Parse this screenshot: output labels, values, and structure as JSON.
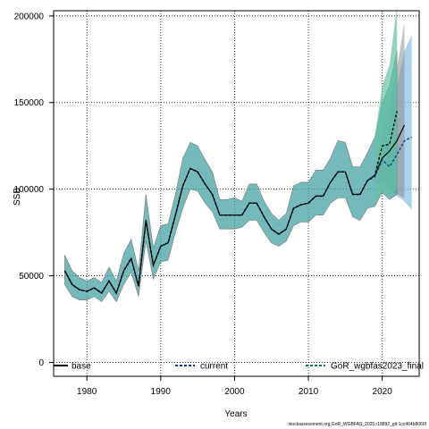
{
  "chart_data": {
    "type": "line",
    "xlabel": "Years",
    "ylabel": "SSB",
    "xlim": [
      1975.5,
      2025
    ],
    "ylim": [
      -8000,
      203000
    ],
    "x_ticks": [
      1980,
      1990,
      2000,
      2010,
      2020
    ],
    "y_ticks": [
      0,
      50000,
      100000,
      150000,
      200000
    ],
    "x_tick_labels": [
      "1980",
      "1990",
      "2000",
      "2010",
      "2020"
    ],
    "y_tick_labels": [
      "0",
      "50000",
      "100000",
      "150000",
      "200000"
    ],
    "grid": true,
    "legend_placement": "bottom",
    "colors": {
      "base": "#000000",
      "current": "#0b3d8c",
      "gor": "#0b6e5e",
      "gor_band": "#45a3a3",
      "forecast_green": "#66c2a5",
      "forecast_blue": "#8fc3e3",
      "forecast_grey": "#8c8c8c"
    },
    "series": [
      {
        "name": "base",
        "x": [
          1977,
          1978,
          1979,
          1980,
          1981,
          1982,
          1983,
          1984,
          1985,
          1986,
          1987,
          1988,
          1989,
          1990,
          1991,
          1992,
          1993,
          1994,
          1995,
          1996,
          1997,
          1998,
          1999,
          2000,
          2001,
          2002,
          2003,
          2004,
          2005,
          2006,
          2007,
          2008,
          2009,
          2010,
          2011,
          2012,
          2013,
          2014,
          2015,
          2016,
          2017,
          2018,
          2019,
          2020,
          2021,
          2022,
          2023
        ],
        "values": [
          53000,
          45000,
          42000,
          41000,
          43000,
          40000,
          47000,
          40000,
          53000,
          60000,
          44000,
          82000,
          56000,
          67000,
          69000,
          85000,
          102000,
          112000,
          110000,
          103000,
          97000,
          85000,
          85000,
          85000,
          85000,
          92000,
          92000,
          84000,
          77000,
          74000,
          77000,
          89000,
          91000,
          92000,
          96000,
          96000,
          104000,
          110000,
          110000,
          97000,
          97000,
          105000,
          108000,
          118000,
          122000,
          128000,
          137000
        ]
      },
      {
        "name": "current",
        "x": [
          1977,
          1978,
          1979,
          1980,
          1981,
          1982,
          1983,
          1984,
          1985,
          1986,
          1987,
          1988,
          1989,
          1990,
          1991,
          1992,
          1993,
          1994,
          1995,
          1996,
          1997,
          1998,
          1999,
          2000,
          2001,
          2002,
          2003,
          2004,
          2005,
          2006,
          2007,
          2008,
          2009,
          2010,
          2011,
          2012,
          2013,
          2014,
          2015,
          2016,
          2017,
          2018,
          2019,
          2020,
          2021,
          2022,
          2023,
          2024
        ],
        "values": [
          53000,
          45000,
          42000,
          41000,
          43000,
          40000,
          47000,
          40000,
          53000,
          60000,
          44000,
          82000,
          56000,
          67000,
          69000,
          85000,
          102000,
          112000,
          110000,
          103000,
          97000,
          85000,
          85000,
          85000,
          85000,
          92000,
          92000,
          84000,
          77000,
          74000,
          77000,
          89000,
          91000,
          92000,
          96000,
          96000,
          104000,
          110000,
          110000,
          97000,
          97000,
          105000,
          107000,
          117000,
          113000,
          120000,
          128000,
          130000
        ]
      },
      {
        "name": "GoR_wgbfas2023_final",
        "x": [
          1977,
          1978,
          1979,
          1980,
          1981,
          1982,
          1983,
          1984,
          1985,
          1986,
          1987,
          1988,
          1989,
          1990,
          1991,
          1992,
          1993,
          1994,
          1995,
          1996,
          1997,
          1998,
          1999,
          2000,
          2001,
          2002,
          2003,
          2004,
          2005,
          2006,
          2007,
          2008,
          2009,
          2010,
          2011,
          2012,
          2013,
          2014,
          2015,
          2016,
          2017,
          2018,
          2019,
          2020,
          2021,
          2022
        ],
        "values": [
          53000,
          45000,
          42000,
          41000,
          43000,
          40000,
          47000,
          40000,
          53000,
          60000,
          44000,
          82000,
          56000,
          67000,
          69000,
          85000,
          102000,
          112000,
          110000,
          103000,
          97000,
          85000,
          85000,
          85000,
          85000,
          92000,
          92000,
          84000,
          77000,
          74000,
          77000,
          89000,
          91000,
          92000,
          96000,
          96000,
          104000,
          110000,
          110000,
          97000,
          97000,
          105000,
          108000,
          125000,
          126000,
          145000
        ],
        "upper": [
          62000,
          53000,
          49000,
          47000,
          49000,
          46000,
          55000,
          47000,
          63000,
          71000,
          53000,
          97000,
          66000,
          79000,
          80000,
          97000,
          118000,
          127000,
          125000,
          117000,
          110000,
          94000,
          94000,
          95000,
          93000,
          103000,
          103000,
          93000,
          86000,
          82000,
          86000,
          102000,
          104000,
          104000,
          111000,
          111000,
          118000,
          128000,
          127000,
          113000,
          113000,
          121000,
          130000,
          150000,
          160000,
          180000
        ],
        "lower": [
          45000,
          38000,
          36000,
          36000,
          38000,
          35000,
          41000,
          35000,
          45000,
          52000,
          38000,
          70000,
          48000,
          58000,
          59000,
          75000,
          89000,
          100000,
          99000,
          92000,
          87000,
          77000,
          77000,
          77000,
          78000,
          82000,
          82000,
          75000,
          69000,
          67000,
          70000,
          79000,
          81000,
          81000,
          85000,
          85000,
          92000,
          95000,
          95000,
          84000,
          82000,
          89000,
          90000,
          98000,
          94000,
          97000
        ]
      }
    ]
  },
  "caption": "stockassessment.org,GoR_WGBFAS_2025,r18892_git:1cc464b8066f"
}
